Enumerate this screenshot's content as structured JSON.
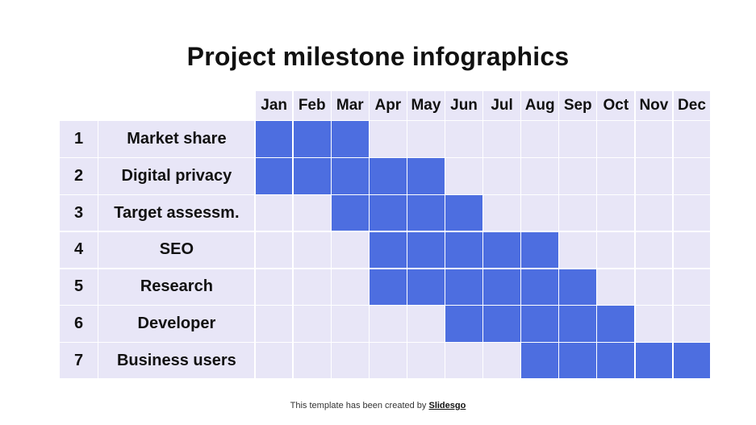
{
  "title": "Project milestone infographics",
  "footer": {
    "text": "This template has been created by ",
    "link": "Slidesgo"
  },
  "colors": {
    "active": "#4d6ee0",
    "inactive": "#e8e6f7"
  },
  "chart_data": {
    "type": "table",
    "title": "Project milestone infographics",
    "months": [
      "Jan",
      "Feb",
      "Mar",
      "Apr",
      "May",
      "Jun",
      "Jul",
      "Aug",
      "Sep",
      "Oct",
      "Nov",
      "Dec"
    ],
    "tasks": [
      {
        "num": "1",
        "name": "Market share",
        "start": "Jan",
        "end": "Mar",
        "active": [
          1,
          1,
          1,
          0,
          0,
          0,
          0,
          0,
          0,
          0,
          0,
          0
        ]
      },
      {
        "num": "2",
        "name": "Digital privacy",
        "start": "Jan",
        "end": "May",
        "active": [
          1,
          1,
          1,
          1,
          1,
          0,
          0,
          0,
          0,
          0,
          0,
          0
        ]
      },
      {
        "num": "3",
        "name": "Target assessm.",
        "start": "Mar",
        "end": "Jun",
        "active": [
          0,
          0,
          1,
          1,
          1,
          1,
          0,
          0,
          0,
          0,
          0,
          0
        ]
      },
      {
        "num": "4",
        "name": "SEO",
        "start": "Apr",
        "end": "Aug",
        "active": [
          0,
          0,
          0,
          1,
          1,
          1,
          1,
          1,
          0,
          0,
          0,
          0
        ]
      },
      {
        "num": "5",
        "name": "Research",
        "start": "Apr",
        "end": "Sep",
        "active": [
          0,
          0,
          0,
          1,
          1,
          1,
          1,
          1,
          1,
          0,
          0,
          0
        ]
      },
      {
        "num": "6",
        "name": "Developer",
        "start": "Jun",
        "end": "Oct",
        "active": [
          0,
          0,
          0,
          0,
          0,
          1,
          1,
          1,
          1,
          1,
          0,
          0
        ]
      },
      {
        "num": "7",
        "name": "Business users",
        "start": "Aug",
        "end": "Dec",
        "active": [
          0,
          0,
          0,
          0,
          0,
          0,
          0,
          1,
          1,
          1,
          1,
          1
        ]
      }
    ]
  }
}
